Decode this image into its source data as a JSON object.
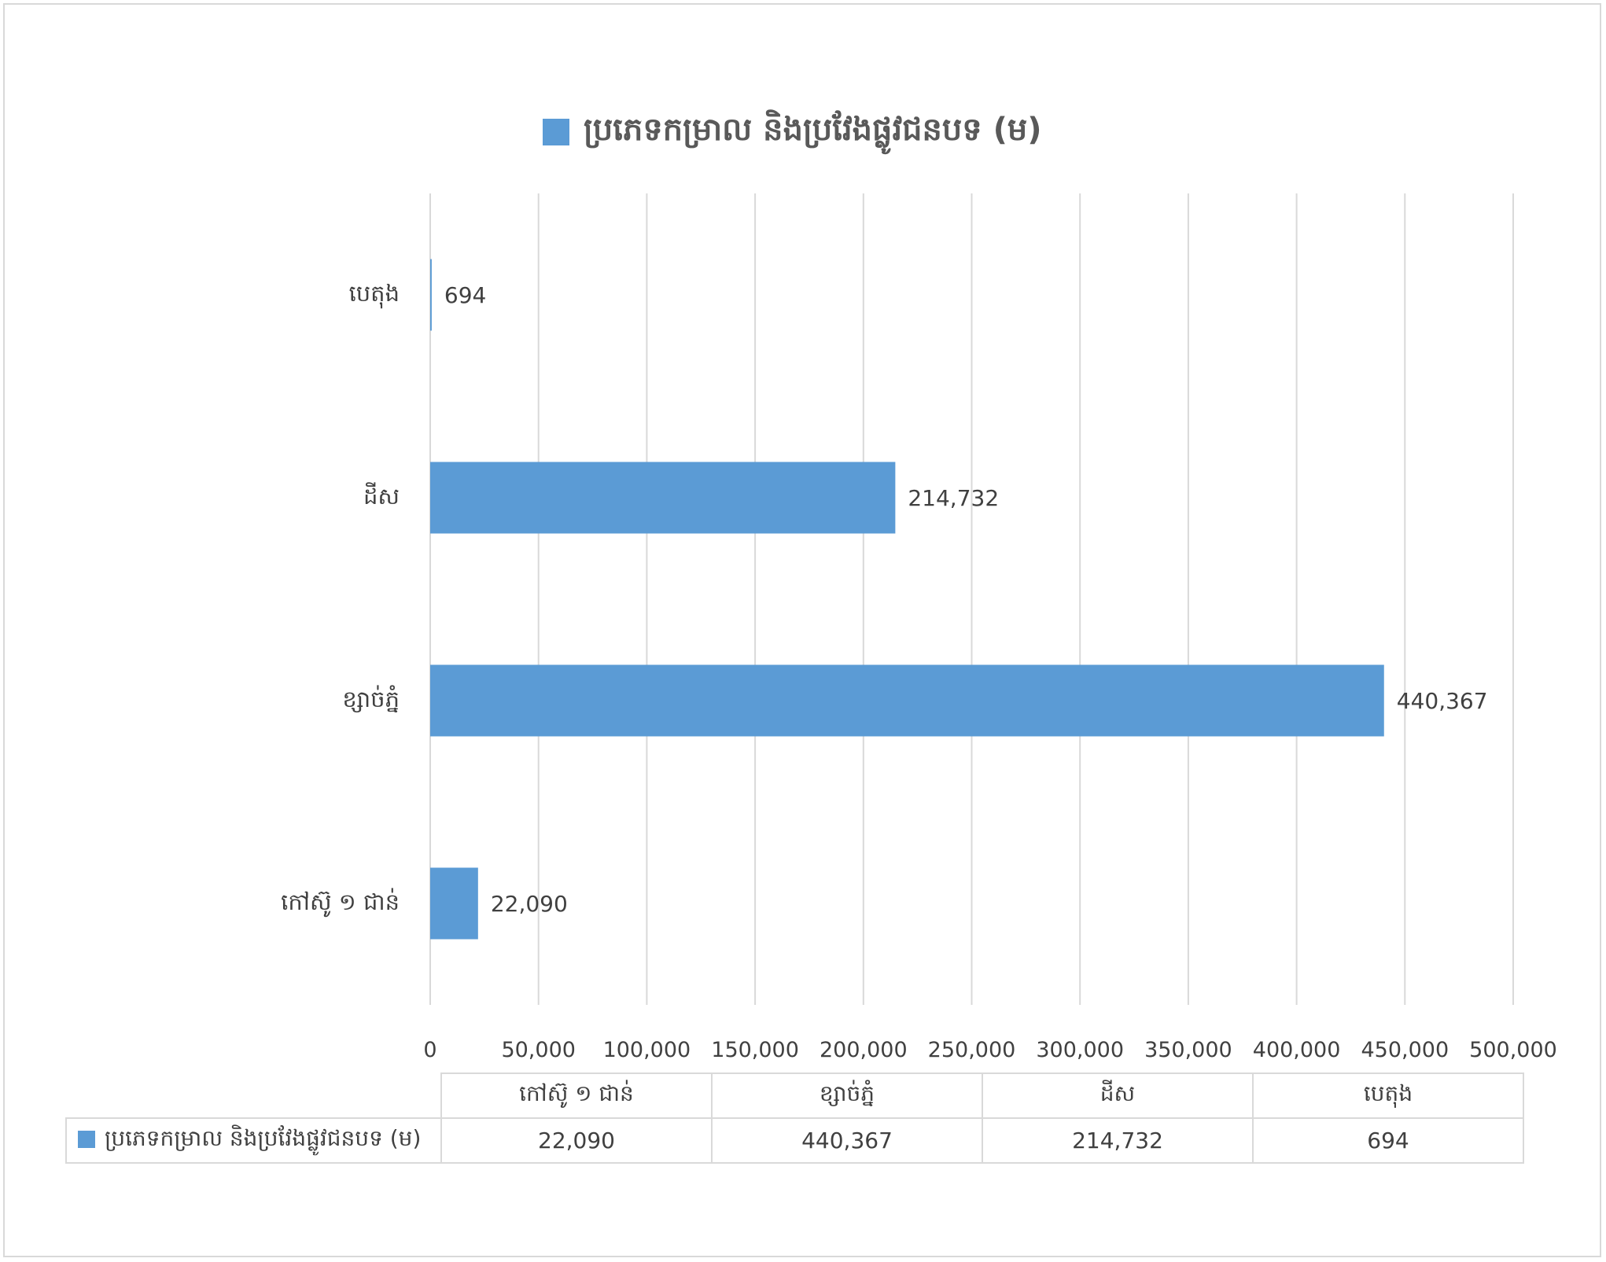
{
  "chart_data": {
    "type": "bar",
    "orientation": "horizontal",
    "title": "",
    "legend": {
      "position": "top",
      "entries": [
        "ប្រភេទកម្រាល និងប្រវែងផ្លូវជនបទ (ម)"
      ]
    },
    "categories": [
      "កៅស៊ូ ១ ជាន់",
      "ខ្សាច់ភ្នំ",
      "ដីស",
      "បេតុង"
    ],
    "series": [
      {
        "name": "ប្រភេទកម្រាល និងប្រវែងផ្លូវជនបទ (ម)",
        "values": [
          22090,
          440367,
          214732,
          694
        ],
        "color": "#5b9bd5"
      }
    ],
    "data_labels": [
      "22,090",
      "440,367",
      "214,732",
      "694"
    ],
    "xlim": [
      0,
      500000
    ],
    "x_ticks": [
      "0",
      "50,000",
      "100,000",
      "150,000",
      "200,000",
      "250,000",
      "300,000",
      "350,000",
      "400,000",
      "450,000",
      "500,000"
    ],
    "grid": true,
    "data_table": {
      "legend_label": "ប្រភេទកម្រាល និងប្រវែងផ្លូវជនបទ (ម)",
      "headers": [
        "កៅស៊ូ ១ ជាន់",
        "ខ្សាច់ភ្នំ",
        "ដីស",
        "បេតុង"
      ],
      "values": [
        "22,090",
        "440,367",
        "214,732",
        "694"
      ]
    }
  }
}
